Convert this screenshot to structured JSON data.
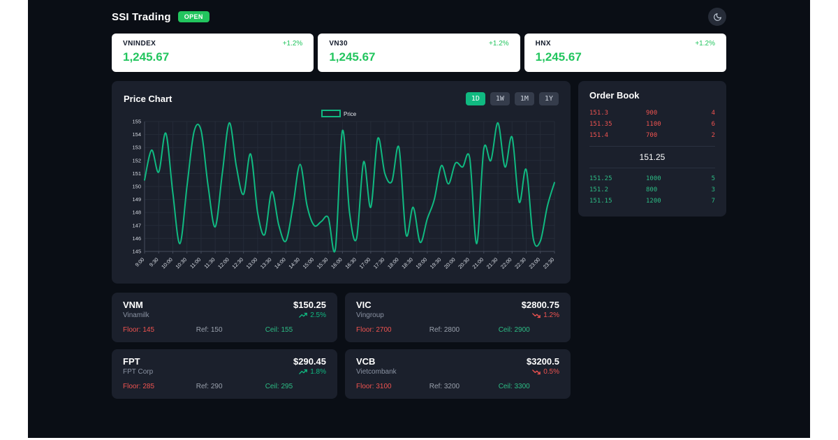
{
  "theme": {
    "app_bg": "#0a0e15",
    "panel_bg": "#1b202c",
    "accent_green": "#10b981",
    "bright_green": "#22c55e",
    "red": "#ef5350",
    "bid_green": "#2dbd85",
    "grid_color": "#252b38",
    "axis_color": "#454c5c",
    "tick_text": "#d6dae2"
  },
  "header": {
    "title": "SSI Trading",
    "status_badge": "OPEN",
    "theme_toggle_icon": "moon-icon"
  },
  "indices": [
    {
      "name": "VNINDEX",
      "value": "1,245.67",
      "change": "+1.2%"
    },
    {
      "name": "VN30",
      "value": "1,245.67",
      "change": "+1.2%"
    },
    {
      "name": "HNX",
      "value": "1,245.67",
      "change": "+1.2%"
    }
  ],
  "price_chart": {
    "title": "Price Chart",
    "ranges": [
      {
        "label": "1D",
        "active": true
      },
      {
        "label": "1W",
        "active": false
      },
      {
        "label": "1M",
        "active": false
      },
      {
        "label": "1Y",
        "active": false
      }
    ],
    "legend_label": "Price"
  },
  "chart_data": {
    "type": "line",
    "title": "Price Chart",
    "legend": [
      "Price"
    ],
    "legend_position": "top-center",
    "grid": true,
    "ylim": [
      145,
      155
    ],
    "y_ticks": [
      145,
      146,
      147,
      148,
      149,
      150,
      151,
      152,
      153,
      154,
      155
    ],
    "x_tick_labels": [
      "9:00",
      "9:30",
      "10:00",
      "10:30",
      "11:00",
      "11:30",
      "12:00",
      "12:30",
      "13:00",
      "13:30",
      "14:00",
      "14:30",
      "15:00",
      "15:30",
      "16:00",
      "16:30",
      "17:00",
      "17:30",
      "18:00",
      "18:30",
      "19:00",
      "19:30",
      "20:00",
      "20:30",
      "21:00",
      "21:30",
      "22:00",
      "22:30",
      "23:00",
      "23:30"
    ],
    "series": [
      {
        "name": "Price",
        "color": "#10b981",
        "x": [
          "9:00",
          "9:15",
          "9:30",
          "9:45",
          "10:00",
          "10:15",
          "10:30",
          "10:45",
          "11:00",
          "11:15",
          "11:30",
          "11:45",
          "12:00",
          "12:15",
          "12:30",
          "12:45",
          "13:00",
          "13:15",
          "13:30",
          "13:45",
          "14:00",
          "14:15",
          "14:30",
          "14:45",
          "15:00",
          "15:15",
          "15:30",
          "15:45",
          "16:00",
          "16:15",
          "16:30",
          "16:45",
          "17:00",
          "17:15",
          "17:30",
          "17:45",
          "18:00",
          "18:15",
          "18:30",
          "18:45",
          "19:00",
          "19:15",
          "19:30",
          "19:45",
          "20:00",
          "20:15",
          "20:30",
          "20:45",
          "21:00",
          "21:15",
          "21:30",
          "21:45",
          "22:00",
          "22:15",
          "22:30",
          "22:45",
          "23:00",
          "23:15",
          "23:30"
        ],
        "values": [
          150.5,
          152.8,
          151.1,
          154.1,
          149.5,
          145.6,
          150.0,
          154.2,
          154.3,
          150.0,
          146.9,
          151.0,
          154.9,
          151.5,
          149.4,
          152.5,
          148.0,
          146.3,
          149.6,
          147.0,
          145.8,
          148.5,
          151.7,
          148.5,
          147.0,
          147.3,
          147.6,
          145.2,
          154.3,
          148.0,
          146.0,
          151.9,
          148.4,
          153.7,
          151.0,
          150.4,
          153.0,
          146.3,
          148.4,
          145.7,
          147.5,
          149.0,
          151.6,
          150.2,
          151.8,
          151.5,
          152.2,
          145.6,
          152.9,
          152.0,
          154.9,
          151.5,
          153.8,
          148.8,
          151.3,
          146.0,
          145.8,
          148.5,
          150.3
        ]
      }
    ]
  },
  "order_book": {
    "title": "Order Book",
    "asks": [
      {
        "price": "151.3",
        "volume": "900",
        "orders": "4"
      },
      {
        "price": "151.35",
        "volume": "1100",
        "orders": "6"
      },
      {
        "price": "151.4",
        "volume": "700",
        "orders": "2"
      }
    ],
    "last_price": "151.25",
    "bids": [
      {
        "price": "151.25",
        "volume": "1000",
        "orders": "5"
      },
      {
        "price": "151.2",
        "volume": "800",
        "orders": "3"
      },
      {
        "price": "151.15",
        "volume": "1200",
        "orders": "7"
      }
    ]
  },
  "stocks": [
    {
      "symbol": "VNM",
      "company": "Vinamilk",
      "price": "$150.25",
      "change": "2.5%",
      "direction": "up",
      "floor": "Floor: 145",
      "ref": "Ref: 150",
      "ceil": "Ceil: 155"
    },
    {
      "symbol": "VIC",
      "company": "Vingroup",
      "price": "$2800.75",
      "change": "1.2%",
      "direction": "down",
      "floor": "Floor: 2700",
      "ref": "Ref: 2800",
      "ceil": "Ceil: 2900"
    },
    {
      "symbol": "FPT",
      "company": "FPT Corp",
      "price": "$290.45",
      "change": "1.8%",
      "direction": "up",
      "floor": "Floor: 285",
      "ref": "Ref: 290",
      "ceil": "Ceil: 295"
    },
    {
      "symbol": "VCB",
      "company": "Vietcombank",
      "price": "$3200.5",
      "change": "0.5%",
      "direction": "down",
      "floor": "Floor: 3100",
      "ref": "Ref: 3200",
      "ceil": "Ceil: 3300"
    }
  ]
}
